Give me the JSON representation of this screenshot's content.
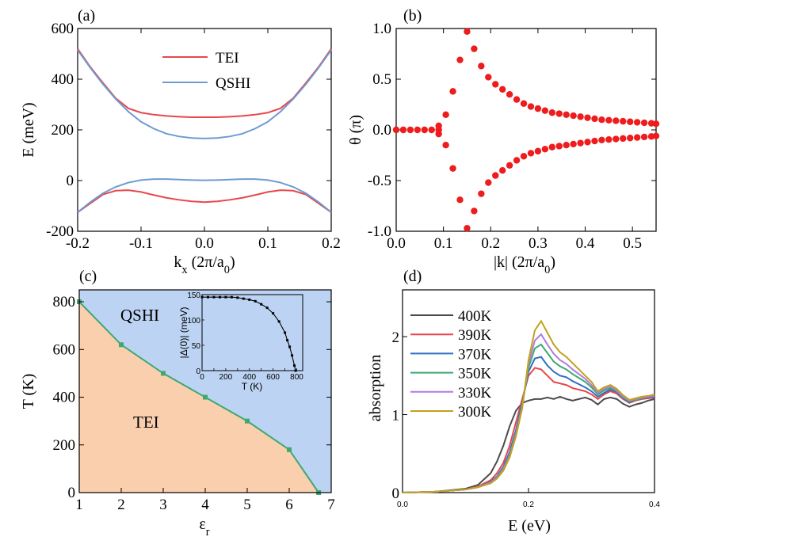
{
  "chart_data": [
    {
      "panel": "(a)",
      "type": "line",
      "xlabel": "k_x (2π/a_0)",
      "ylabel": "E (meV)",
      "xlim": [
        -0.2,
        0.2
      ],
      "ylim": [
        -200,
        600
      ],
      "xticks": [
        "-0.2",
        "-0.1",
        "0.0",
        "0.1",
        "0.2"
      ],
      "yticks": [
        "-200",
        "0",
        "200",
        "400",
        "600"
      ],
      "legend_position": "top-center",
      "colors": {
        "TEI": "#e8474d",
        "QSHI": "#6e9bd0"
      },
      "series": [
        {
          "name": "TEI",
          "band": "conduction",
          "x": [
            -0.2,
            -0.18,
            -0.16,
            -0.14,
            -0.12,
            -0.1,
            -0.08,
            -0.06,
            -0.04,
            -0.02,
            0,
            0.02,
            0.04,
            0.06,
            0.08,
            0.1,
            0.12,
            0.14,
            0.16,
            0.18,
            0.2
          ],
          "y": [
            520,
            448,
            385,
            325,
            285,
            268,
            260,
            255,
            252,
            250,
            250,
            250,
            252,
            255,
            260,
            268,
            285,
            325,
            385,
            448,
            520
          ]
        },
        {
          "name": "TEI",
          "band": "valence",
          "x": [
            -0.2,
            -0.18,
            -0.16,
            -0.14,
            -0.12,
            -0.1,
            -0.08,
            -0.06,
            -0.04,
            -0.02,
            0,
            0.02,
            0.04,
            0.06,
            0.08,
            0.1,
            0.12,
            0.14,
            0.16,
            0.18,
            0.2
          ],
          "y": [
            -125,
            -90,
            -55,
            -40,
            -38,
            -45,
            -57,
            -68,
            -76,
            -82,
            -85,
            -82,
            -76,
            -68,
            -57,
            -45,
            -38,
            -40,
            -55,
            -90,
            -125
          ]
        },
        {
          "name": "QSHI",
          "band": "conduction",
          "x": [
            -0.2,
            -0.18,
            -0.16,
            -0.14,
            -0.12,
            -0.1,
            -0.08,
            -0.06,
            -0.04,
            -0.02,
            0,
            0.02,
            0.04,
            0.06,
            0.08,
            0.1,
            0.12,
            0.14,
            0.16,
            0.18,
            0.2
          ],
          "y": [
            515,
            445,
            380,
            322,
            272,
            232,
            205,
            185,
            174,
            168,
            166,
            168,
            174,
            185,
            205,
            232,
            272,
            322,
            380,
            445,
            515
          ]
        },
        {
          "name": "QSHI",
          "band": "valence",
          "x": [
            -0.2,
            -0.18,
            -0.16,
            -0.14,
            -0.12,
            -0.1,
            -0.08,
            -0.06,
            -0.04,
            -0.02,
            0,
            0.02,
            0.04,
            0.06,
            0.08,
            0.1,
            0.12,
            0.14,
            0.16,
            0.18,
            0.2
          ],
          "y": [
            -125,
            -85,
            -50,
            -25,
            -8,
            2,
            6,
            6,
            4,
            2,
            1,
            2,
            4,
            6,
            6,
            2,
            -8,
            -25,
            -50,
            -85,
            -125
          ]
        }
      ]
    },
    {
      "panel": "(b)",
      "type": "scatter",
      "xlabel": "|k| (2π/a_0)",
      "ylabel": "θ (π)",
      "xlim": [
        0.0,
        0.55
      ],
      "ylim": [
        -1.0,
        1.0
      ],
      "xticks": [
        "0.0",
        "0.1",
        "0.2",
        "0.3",
        "0.4",
        "0.5"
      ],
      "yticks": [
        "-1.0",
        "-0.5",
        "0.0",
        "0.5",
        "1.0"
      ],
      "colors": {
        "points": "#ee1c1c"
      },
      "series": [
        {
          "branch": "zero",
          "x": [
            0.0,
            0.015,
            0.03,
            0.045,
            0.06,
            0.075,
            0.09
          ],
          "y": [
            0.0,
            0.0,
            0.0,
            0.0,
            0.0,
            0.0,
            0.0
          ]
        },
        {
          "branch": "upper",
          "x": [
            0.09,
            0.105,
            0.12,
            0.135,
            0.15,
            0.165,
            0.18,
            0.195,
            0.21,
            0.225,
            0.24,
            0.255,
            0.27,
            0.285,
            0.3,
            0.315,
            0.33,
            0.345,
            0.36,
            0.375,
            0.39,
            0.405,
            0.42,
            0.435,
            0.45,
            0.465,
            0.48,
            0.495,
            0.51,
            0.525,
            0.54,
            0.55
          ],
          "y": [
            0.04,
            0.15,
            0.38,
            0.69,
            0.97,
            0.8,
            0.63,
            0.52,
            0.45,
            0.4,
            0.35,
            0.3,
            0.26,
            0.23,
            0.21,
            0.19,
            0.17,
            0.16,
            0.15,
            0.14,
            0.13,
            0.12,
            0.11,
            0.1,
            0.095,
            0.09,
            0.085,
            0.08,
            0.075,
            0.07,
            0.065,
            0.06
          ]
        },
        {
          "branch": "lower",
          "x": [
            0.09,
            0.105,
            0.12,
            0.135,
            0.15,
            0.165,
            0.18,
            0.195,
            0.21,
            0.225,
            0.24,
            0.255,
            0.27,
            0.285,
            0.3,
            0.315,
            0.33,
            0.345,
            0.36,
            0.375,
            0.39,
            0.405,
            0.42,
            0.435,
            0.45,
            0.465,
            0.48,
            0.495,
            0.51,
            0.525,
            0.54,
            0.55
          ],
          "y": [
            -0.04,
            -0.15,
            -0.38,
            -0.69,
            -0.97,
            -0.8,
            -0.63,
            -0.52,
            -0.45,
            -0.4,
            -0.35,
            -0.3,
            -0.26,
            -0.23,
            -0.21,
            -0.19,
            -0.17,
            -0.16,
            -0.15,
            -0.14,
            -0.13,
            -0.12,
            -0.11,
            -0.1,
            -0.095,
            -0.09,
            -0.085,
            -0.08,
            -0.075,
            -0.07,
            -0.065,
            -0.06
          ]
        }
      ]
    },
    {
      "panel": "(c)",
      "type": "area",
      "xlabel": "ε_r",
      "ylabel": "T (K)",
      "xlim": [
        1,
        7
      ],
      "ylim": [
        0,
        850
      ],
      "xticks": [
        "1",
        "2",
        "3",
        "4",
        "5",
        "6",
        "7"
      ],
      "yticks": [
        "0",
        "200",
        "400",
        "600",
        "800"
      ],
      "regions": {
        "upper": "QSHI",
        "lower": "TEI"
      },
      "colors": {
        "upper": "#bcd3f3",
        "lower": "#f9cfae",
        "boundary": "#3fa870"
      },
      "boundary": {
        "x": [
          1,
          2,
          3,
          4,
          5,
          6,
          6.7
        ],
        "y": [
          800,
          620,
          500,
          400,
          300,
          180,
          0
        ]
      },
      "inset": {
        "xlabel": "T (K)",
        "ylabel": "|Δ(0)| (meV)",
        "xlim": [
          0,
          850
        ],
        "ylim": [
          0,
          150
        ],
        "xticks": [
          "0",
          "100",
          "200",
          "300",
          "400",
          "500",
          "600",
          "700",
          "800"
        ],
        "yticks": [
          "0",
          "50",
          "100",
          "150"
        ],
        "x": [
          0,
          50,
          100,
          150,
          200,
          250,
          300,
          350,
          400,
          450,
          500,
          550,
          600,
          650,
          700,
          720,
          740,
          760,
          780,
          790
        ],
        "y": [
          145,
          145,
          145,
          145,
          145,
          145,
          144,
          142,
          140,
          137,
          131,
          124,
          113,
          97,
          75,
          60,
          47,
          30,
          10,
          0
        ]
      }
    },
    {
      "panel": "(d)",
      "type": "line",
      "xlabel": "E (eV)",
      "ylabel": "absorption",
      "xlim": [
        0.0,
        0.4
      ],
      "ylim": [
        0,
        2.6
      ],
      "xticks": [
        "0.0",
        "0.2",
        "0.4"
      ],
      "yticks": [
        "0",
        "1",
        "2"
      ],
      "legend_position": "top-left",
      "x": [
        0,
        0.05,
        0.1,
        0.12,
        0.14,
        0.15,
        0.16,
        0.17,
        0.18,
        0.19,
        0.2,
        0.21,
        0.22,
        0.23,
        0.24,
        0.25,
        0.26,
        0.27,
        0.28,
        0.29,
        0.3,
        0.31,
        0.32,
        0.33,
        0.34,
        0.35,
        0.36,
        0.37,
        0.38,
        0.39,
        0.4
      ],
      "series": [
        {
          "name": "400K",
          "color": "#4b4b4b",
          "values": [
            0,
            0.01,
            0.05,
            0.1,
            0.25,
            0.4,
            0.6,
            0.85,
            1.05,
            1.15,
            1.18,
            1.2,
            1.2,
            1.22,
            1.2,
            1.23,
            1.2,
            1.18,
            1.2,
            1.22,
            1.19,
            1.13,
            1.2,
            1.22,
            1.2,
            1.14,
            1.1,
            1.13,
            1.15,
            1.18,
            1.2
          ]
        },
        {
          "name": "390K",
          "color": "#e8474d",
          "values": [
            0,
            0.01,
            0.04,
            0.08,
            0.16,
            0.25,
            0.38,
            0.6,
            0.9,
            1.2,
            1.5,
            1.6,
            1.58,
            1.5,
            1.42,
            1.4,
            1.38,
            1.34,
            1.32,
            1.3,
            1.26,
            1.2,
            1.26,
            1.3,
            1.27,
            1.2,
            1.15,
            1.18,
            1.2,
            1.21,
            1.22
          ]
        },
        {
          "name": "370K",
          "color": "#2f6fc0",
          "values": [
            0,
            0.01,
            0.04,
            0.07,
            0.14,
            0.21,
            0.33,
            0.52,
            0.8,
            1.15,
            1.55,
            1.72,
            1.74,
            1.63,
            1.55,
            1.5,
            1.48,
            1.43,
            1.39,
            1.35,
            1.3,
            1.23,
            1.28,
            1.32,
            1.29,
            1.21,
            1.16,
            1.19,
            1.21,
            1.22,
            1.23
          ]
        },
        {
          "name": "350K",
          "color": "#3daa6e",
          "values": [
            0,
            0.01,
            0.04,
            0.07,
            0.13,
            0.2,
            0.31,
            0.49,
            0.76,
            1.12,
            1.6,
            1.85,
            1.9,
            1.79,
            1.68,
            1.62,
            1.58,
            1.52,
            1.47,
            1.42,
            1.35,
            1.26,
            1.31,
            1.34,
            1.3,
            1.22,
            1.17,
            1.19,
            1.21,
            1.23,
            1.24
          ]
        },
        {
          "name": "330K",
          "color": "#b07ce0",
          "values": [
            0,
            0.01,
            0.04,
            0.07,
            0.13,
            0.19,
            0.3,
            0.47,
            0.74,
            1.1,
            1.65,
            1.95,
            2.03,
            1.9,
            1.78,
            1.7,
            1.65,
            1.58,
            1.52,
            1.46,
            1.38,
            1.28,
            1.33,
            1.36,
            1.31,
            1.23,
            1.18,
            1.2,
            1.22,
            1.23,
            1.24
          ]
        },
        {
          "name": "300K",
          "color": "#c4a21a",
          "values": [
            0,
            0.01,
            0.04,
            0.07,
            0.12,
            0.18,
            0.28,
            0.45,
            0.72,
            1.08,
            1.7,
            2.08,
            2.2,
            2.05,
            1.9,
            1.8,
            1.74,
            1.66,
            1.58,
            1.5,
            1.42,
            1.3,
            1.35,
            1.38,
            1.33,
            1.25,
            1.19,
            1.21,
            1.23,
            1.24,
            1.26
          ]
        }
      ]
    }
  ]
}
